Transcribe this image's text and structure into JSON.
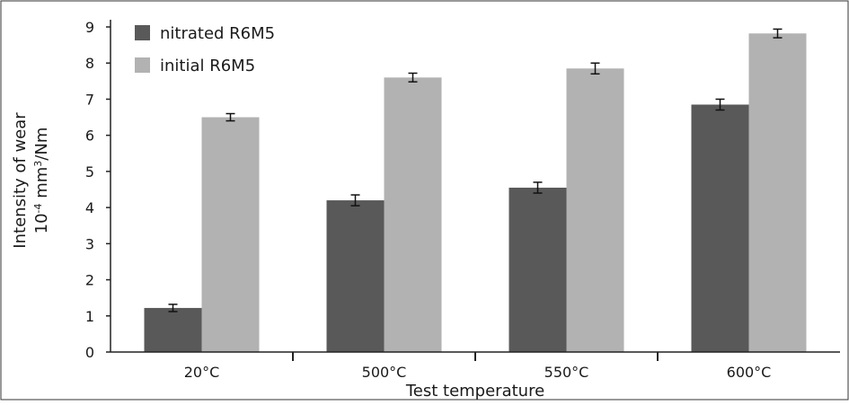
{
  "chart_data": {
    "type": "bar",
    "categories": [
      "20°C",
      "500°C",
      "550°C",
      "600°C"
    ],
    "series": [
      {
        "name": "nitrated R6M5",
        "values": [
          1.22,
          4.2,
          4.55,
          6.85
        ],
        "errors": [
          0.1,
          0.15,
          0.15,
          0.15
        ],
        "color": "#595959"
      },
      {
        "name": "initial R6M5",
        "values": [
          6.5,
          7.6,
          7.85,
          8.82
        ],
        "errors": [
          0.1,
          0.12,
          0.15,
          0.12
        ],
        "color": "#b2b2b2"
      }
    ],
    "xlabel": "Test temperature",
    "ylabel_line1": "Intensity of wear",
    "ylabel_base": "10",
    "ylabel_exp1": "-4",
    "ylabel_mid": " mm",
    "ylabel_exp2": "3",
    "ylabel_end": "/Nm",
    "ylim": [
      0,
      9
    ],
    "yticks": [
      "0",
      "1",
      "2",
      "3",
      "4",
      "5",
      "6",
      "7",
      "8",
      "9"
    ],
    "legend_position": "top-left",
    "grid": false
  }
}
